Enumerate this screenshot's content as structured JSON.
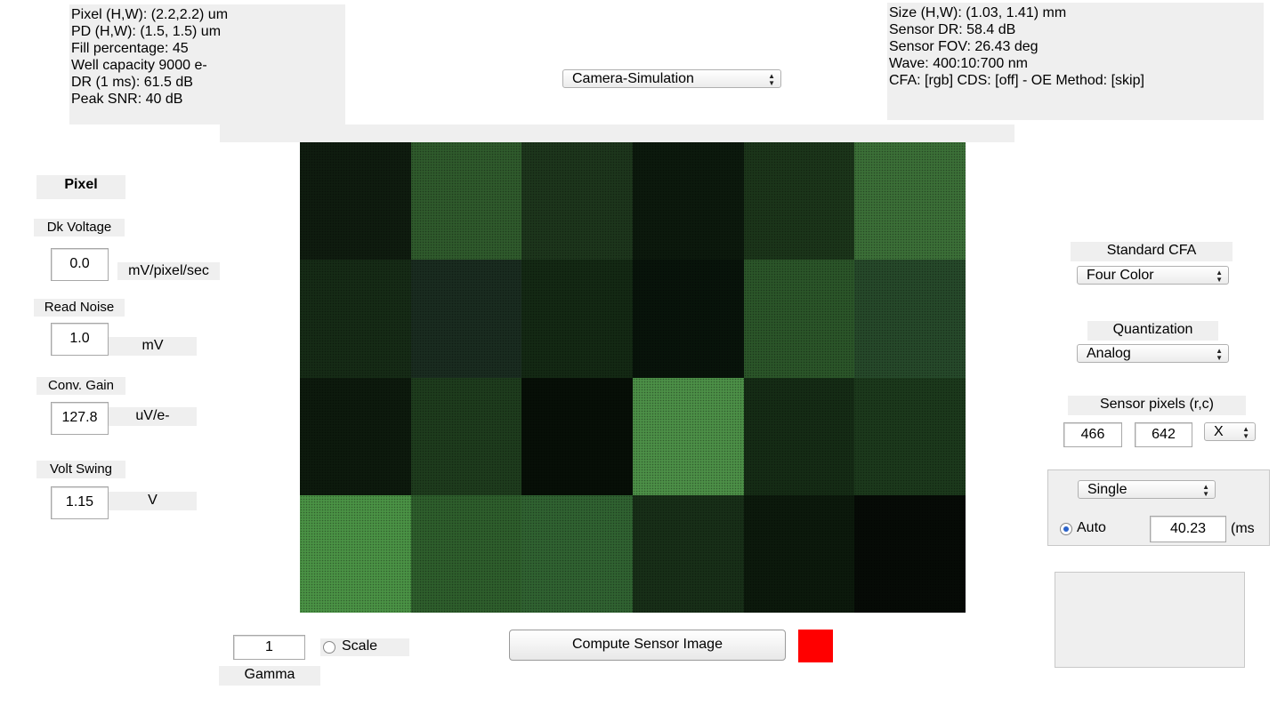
{
  "sensor_info": {
    "pixel_hw": "Pixel (H,W): (2.2,2.2) um",
    "pd_hw": "PD (H,W): (1.5, 1.5) um",
    "fill": "Fill percentage: 45",
    "well": "Well capacity 9000 e-",
    "dr": "DR (1 ms): 61.5 dB",
    "snr": "Peak SNR: 40 dB"
  },
  "sensor_summary": {
    "size": "Size (H,W): (1.03, 1.41) mm",
    "dr": "Sensor DR: 58.4 dB",
    "fov": "Sensor FOV: 26.43 deg",
    "wave": "Wave:  400:10:700 nm",
    "cfa": "CFA:  [rgb] CDS: [off] - OE Method: [skip]"
  },
  "window_select": {
    "value": "Camera-Simulation"
  },
  "pixel_panel": {
    "title": "Pixel",
    "dk_voltage": {
      "label": "Dk Voltage",
      "value": "0.0",
      "unit": "mV/pixel/sec"
    },
    "read_noise": {
      "label": "Read Noise",
      "value": "1.0",
      "unit": "mV"
    },
    "conv_gain": {
      "label": "Conv. Gain",
      "value": "127.8",
      "unit": "uV/e-"
    },
    "volt_swing": {
      "label": "Volt Swing",
      "value": "1.15",
      "unit": "V"
    }
  },
  "cfa_panel": {
    "label": "Standard CFA",
    "value": "Four Color"
  },
  "quant_panel": {
    "label": "Quantization",
    "value": "Analog"
  },
  "pixels_panel": {
    "label": "Sensor pixels  (r,c)",
    "rows": "466",
    "cols": "642",
    "mode": "X"
  },
  "exposure_panel": {
    "mode": "Single",
    "auto_label": "Auto",
    "auto_selected": true,
    "time": "40.23",
    "unit": "(ms"
  },
  "display": {
    "gamma_value": "1",
    "gamma_label": "Gamma",
    "scale_label": "Scale",
    "scale_selected": false
  },
  "compute_button": {
    "label": "Compute Sensor  Image"
  },
  "status_color": "#ff0000",
  "image_patches": [
    "#0f1c0f",
    "#2f5a2c",
    "#1d361c",
    "#0c190d",
    "#1b351a",
    "#3b6f37",
    "#162b16",
    "#1a2c20",
    "#142914",
    "#08140a",
    "#2b5529",
    "#26492a",
    "#0d1a0d",
    "#1e3c1d",
    "#070f07",
    "#4c8f47",
    "#152c15",
    "#1c391c",
    "#4a9245",
    "#2e5e2c",
    "#306231",
    "#182f18",
    "#0c190c",
    "#060b06"
  ]
}
